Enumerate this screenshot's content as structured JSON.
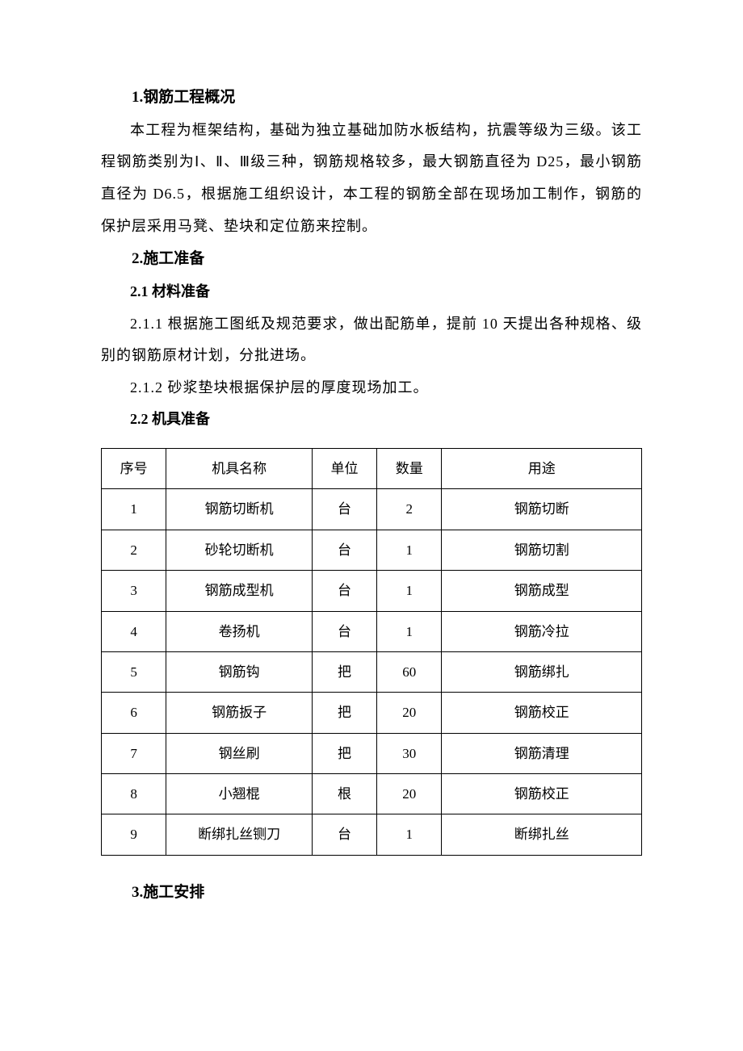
{
  "sections": {
    "s1": {
      "title": "1.钢筋工程概况",
      "p1": "本工程为框架结构，基础为独立基础加防水板结构，抗震等级为三级。该工程钢筋类别为Ⅰ、Ⅱ、Ⅲ级三种，钢筋规格较多，最大钢筋直径为 D25，最小钢筋直径为 D6.5，根据施工组织设计，本工程的钢筋全部在现场加工制作，钢筋的保护层采用马凳、垫块和定位筋来控制。"
    },
    "s2": {
      "title": "2.施工准备",
      "sub1": "2.1 材料准备",
      "p211": "2.1.1 根据施工图纸及规范要求，做出配筋单，提前 10 天提出各种规格、级别的钢筋原材计划，分批进场。",
      "p212": "2.1.2 砂浆垫块根据保护层的厚度现场加工。",
      "sub2": "2.2 机具准备"
    },
    "s3": {
      "title": "3.施工安排"
    }
  },
  "table": {
    "headers": {
      "seq": "序号",
      "name": "机具名称",
      "unit": "单位",
      "qty": "数量",
      "use": "用途"
    },
    "rows": [
      {
        "seq": "1",
        "name": "钢筋切断机",
        "unit": "台",
        "qty": "2",
        "use": "钢筋切断"
      },
      {
        "seq": "2",
        "name": "砂轮切断机",
        "unit": "台",
        "qty": "1",
        "use": "钢筋切割"
      },
      {
        "seq": "3",
        "name": "钢筋成型机",
        "unit": "台",
        "qty": "1",
        "use": "钢筋成型"
      },
      {
        "seq": "4",
        "name": "卷扬机",
        "unit": "台",
        "qty": "1",
        "use": "钢筋冷拉"
      },
      {
        "seq": "5",
        "name": "钢筋钩",
        "unit": "把",
        "qty": "60",
        "use": "钢筋绑扎"
      },
      {
        "seq": "6",
        "name": "钢筋扳子",
        "unit": "把",
        "qty": "20",
        "use": "钢筋校正"
      },
      {
        "seq": "7",
        "name": "钢丝刷",
        "unit": "把",
        "qty": "30",
        "use": "钢筋清理"
      },
      {
        "seq": "8",
        "name": "小翘棍",
        "unit": "根",
        "qty": "20",
        "use": "钢筋校正"
      },
      {
        "seq": "9",
        "name": "断绑扎丝铡刀",
        "unit": "台",
        "qty": "1",
        "use": "断绑扎丝"
      }
    ]
  }
}
